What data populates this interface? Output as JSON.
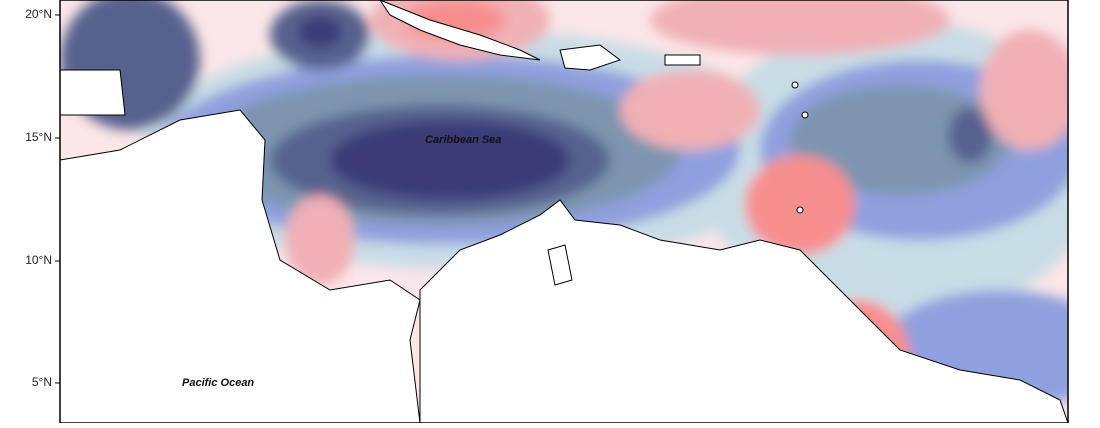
{
  "map": {
    "lat_labels": [
      "20°N",
      "15°N",
      "10°N",
      "5°N"
    ],
    "sea_labels": [
      "Caribbean Sea",
      "Pacific Ocean"
    ]
  }
}
